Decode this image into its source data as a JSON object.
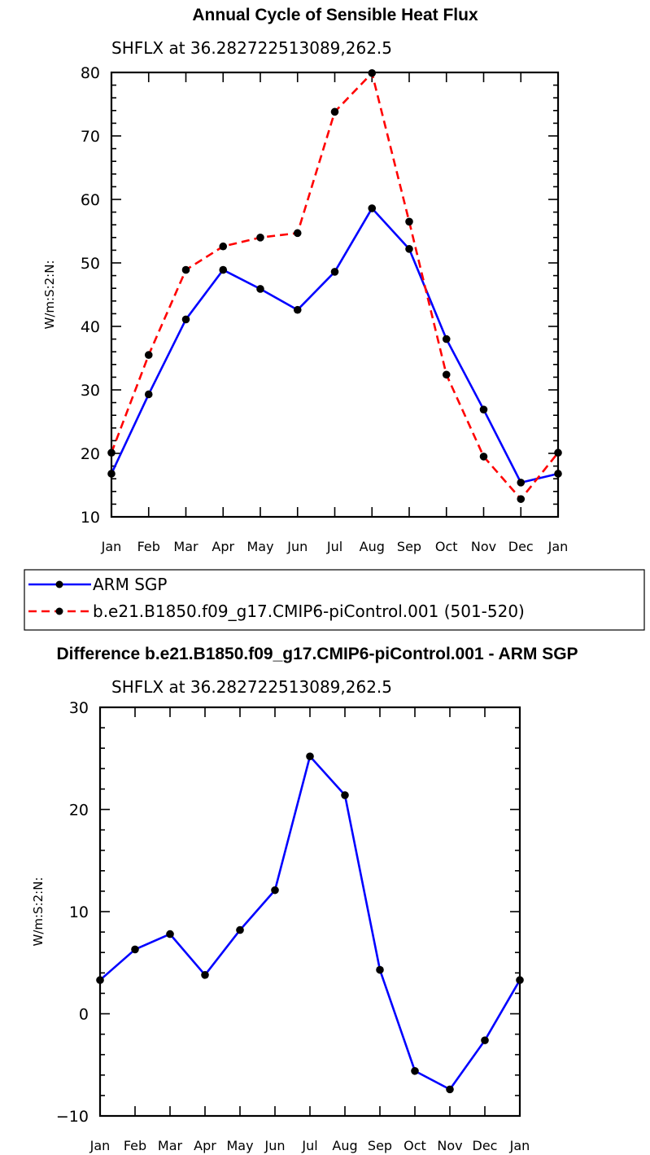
{
  "chart_data": [
    {
      "type": "line",
      "title": "Annual Cycle of Sensible Heat Flux",
      "subtitle": "SHFLX at 36.282722513089,262.5",
      "ylabel": "W/m:S:2:N:",
      "xlabel": "",
      "categories": [
        "Jan",
        "Feb",
        "Mar",
        "Apr",
        "May",
        "Jun",
        "Jul",
        "Aug",
        "Sep",
        "Oct",
        "Nov",
        "Dec",
        "Jan"
      ],
      "ylim": [
        10,
        80
      ],
      "yticks": [
        10,
        20,
        30,
        40,
        50,
        60,
        70,
        80
      ],
      "series": [
        {
          "name": "ARM SGP",
          "color": "#0000ff",
          "dash": "solid",
          "values": [
            16.8,
            29.3,
            41.1,
            48.9,
            45.9,
            42.6,
            48.6,
            58.6,
            52.2,
            38.0,
            26.9,
            15.4,
            16.8
          ]
        },
        {
          "name": "b.e21.B1850.f09_g17.CMIP6-piControl.001 (501-520)",
          "color": "#ff0000",
          "dash": "dashed",
          "values": [
            20.1,
            35.5,
            48.9,
            52.6,
            54.0,
            54.7,
            73.8,
            79.9,
            56.5,
            32.4,
            19.5,
            12.8,
            20.1
          ]
        }
      ]
    },
    {
      "type": "line",
      "title": "Difference b.e21.B1850.f09_g17.CMIP6-piControl.001 - ARM SGP",
      "subtitle": "SHFLX at 36.282722513089,262.5",
      "ylabel": "W/m:S:2:N:",
      "xlabel": "",
      "categories": [
        "Jan",
        "Feb",
        "Mar",
        "Apr",
        "May",
        "Jun",
        "Jul",
        "Aug",
        "Sep",
        "Oct",
        "Nov",
        "Dec",
        "Jan"
      ],
      "ylim": [
        -10,
        30
      ],
      "yticks": [
        -10,
        0,
        10,
        20,
        30
      ],
      "series": [
        {
          "name": "Difference",
          "color": "#0000ff",
          "dash": "solid",
          "values": [
            3.3,
            6.3,
            7.8,
            3.8,
            8.2,
            12.1,
            25.2,
            21.4,
            4.3,
            -5.6,
            -7.4,
            -2.6,
            3.3
          ]
        }
      ]
    }
  ]
}
